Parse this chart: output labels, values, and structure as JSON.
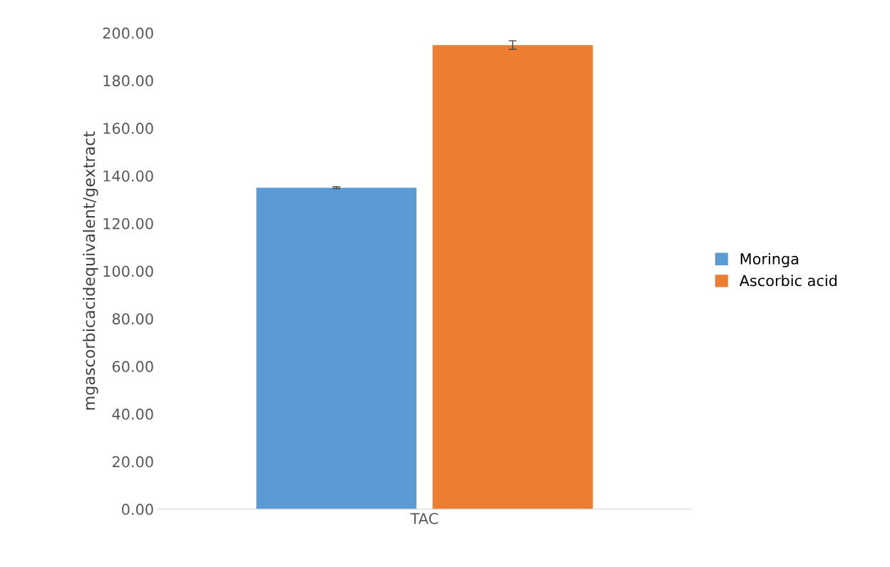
{
  "chart_data": {
    "type": "bar",
    "categories": [
      "TAC"
    ],
    "ylabel": "mgascorbicacidequivalent/gextract",
    "series": [
      {
        "name": "Moringa",
        "color": "#5b9bd5",
        "values": [
          135.0
        ],
        "errors": [
          0.4
        ]
      },
      {
        "name": "Ascorbic acid",
        "color": "#ed7d31",
        "values": [
          194.9
        ],
        "errors": [
          1.8
        ]
      }
    ],
    "ylim": [
      0,
      200
    ],
    "yticks": [
      {
        "value": 0,
        "label": "0.00"
      },
      {
        "value": 20,
        "label": "20.00"
      },
      {
        "value": 40,
        "label": "40.00"
      },
      {
        "value": 60,
        "label": "60.00"
      },
      {
        "value": 80,
        "label": "80.00"
      },
      {
        "value": 100,
        "label": "100.00"
      },
      {
        "value": 120,
        "label": "120.00"
      },
      {
        "value": 140,
        "label": "140.00"
      },
      {
        "value": 160,
        "label": "160.00"
      },
      {
        "value": 180,
        "label": "180.00"
      },
      {
        "value": 200,
        "label": "200.00"
      }
    ],
    "grid": false,
    "legend": "right"
  }
}
